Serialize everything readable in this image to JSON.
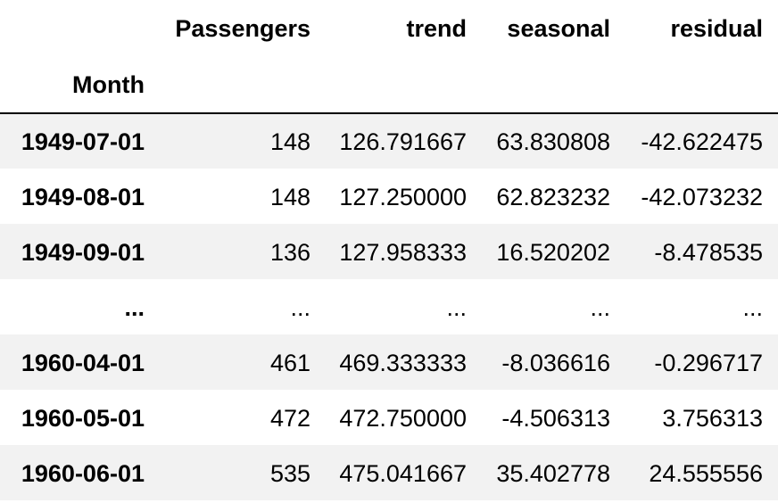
{
  "table": {
    "columns": [
      "Passengers",
      "trend",
      "seasonal",
      "residual"
    ],
    "index_name": "Month",
    "rows": [
      {
        "index": "1949-07-01",
        "values": [
          "148",
          "126.791667",
          "63.830808",
          "-42.622475"
        ]
      },
      {
        "index": "1949-08-01",
        "values": [
          "148",
          "127.250000",
          "62.823232",
          "-42.073232"
        ]
      },
      {
        "index": "1949-09-01",
        "values": [
          "136",
          "127.958333",
          "16.520202",
          "-8.478535"
        ]
      },
      {
        "index": "...",
        "values": [
          "...",
          "...",
          "...",
          "..."
        ]
      },
      {
        "index": "1960-04-01",
        "values": [
          "461",
          "469.333333",
          "-8.036616",
          "-0.296717"
        ]
      },
      {
        "index": "1960-05-01",
        "values": [
          "472",
          "472.750000",
          "-4.506313",
          "3.756313"
        ]
      },
      {
        "index": "1960-06-01",
        "values": [
          "535",
          "475.041667",
          "35.402778",
          "24.555556"
        ]
      }
    ]
  },
  "colors": {
    "striped_row": "#f2f2f2",
    "header_rule": "#000000"
  }
}
